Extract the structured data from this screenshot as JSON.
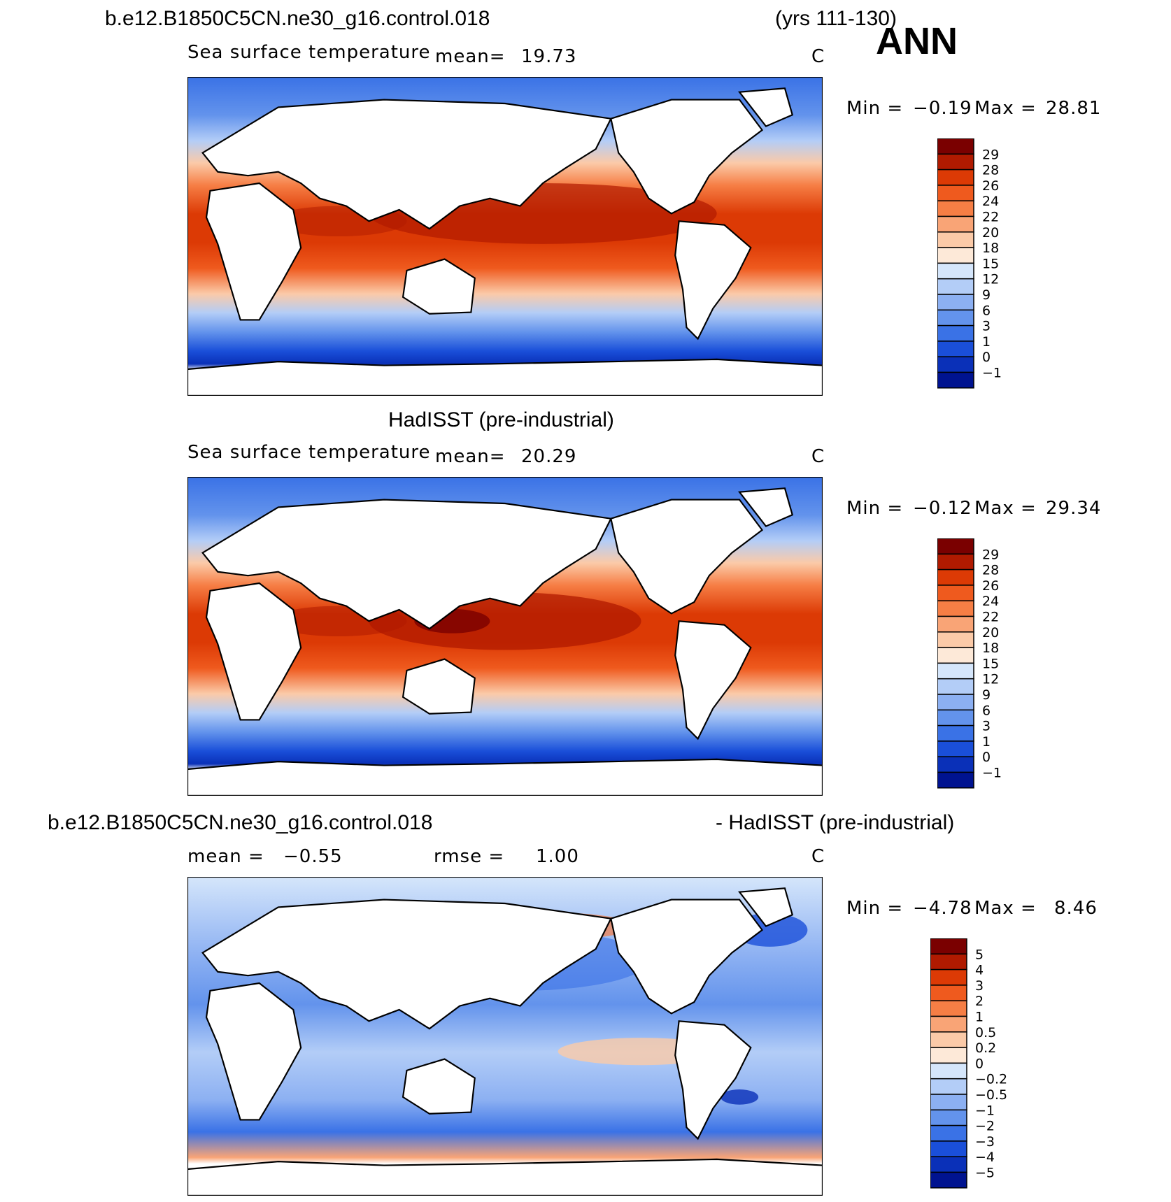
{
  "header": {
    "case_name": "b.e12.B1850C5CN.ne30_g16.control.018",
    "years": "(yrs 111-130)",
    "season": "ANN"
  },
  "panels": [
    {
      "title": "",
      "variable": "Sea surface temperature",
      "mean_label": "mean=",
      "mean_value": "19.73",
      "units": "C",
      "min_label": "Min =",
      "min_value": "−0.19",
      "max_label": "Max =",
      "max_value": "28.81",
      "colorbar_labels": [
        "29",
        "28",
        "26",
        "24",
        "22",
        "20",
        "18",
        "15",
        "12",
        "9",
        "6",
        "3",
        "1",
        "0",
        "−1"
      ],
      "colorbar_colors": [
        "#7a0000",
        "#b01a00",
        "#dc3a05",
        "#ef5a1e",
        "#f67e45",
        "#f9a476",
        "#fbcaa8",
        "#fde9d8",
        "#d5e6fb",
        "#b3cdf7",
        "#8cb0f2",
        "#6393ec",
        "#3a72e6",
        "#1a4fd9",
        "#0a30b8",
        "#001390"
      ]
    },
    {
      "title": "HadISST (pre-industrial)",
      "variable": "Sea surface temperature",
      "mean_label": "mean=",
      "mean_value": "20.29",
      "units": "C",
      "min_label": "Min =",
      "min_value": "−0.12",
      "max_label": "Max =",
      "max_value": "29.34",
      "colorbar_labels": [
        "29",
        "28",
        "26",
        "24",
        "22",
        "20",
        "18",
        "15",
        "12",
        "9",
        "6",
        "3",
        "1",
        "0",
        "−1"
      ],
      "colorbar_colors": [
        "#7a0000",
        "#b01a00",
        "#dc3a05",
        "#ef5a1e",
        "#f67e45",
        "#f9a476",
        "#fbcaa8",
        "#fde9d8",
        "#d5e6fb",
        "#b3cdf7",
        "#8cb0f2",
        "#6393ec",
        "#3a72e6",
        "#1a4fd9",
        "#0a30b8",
        "#001390"
      ]
    },
    {
      "title_left": "b.e12.B1850C5CN.ne30_g16.control.018",
      "title_right": "- HadISST (pre-industrial)",
      "mean_label": "mean =",
      "mean_value": "−0.55",
      "rmse_label": "rmse =",
      "rmse_value": "1.00",
      "units": "C",
      "min_label": "Min =",
      "min_value": "−4.78",
      "max_label": "Max =",
      "max_value": "8.46",
      "colorbar_labels": [
        "5",
        "4",
        "3",
        "2",
        "1",
        "0.5",
        "0.2",
        "0",
        "−0.2",
        "−0.5",
        "−1",
        "−2",
        "−3",
        "−4",
        "−5"
      ],
      "colorbar_colors": [
        "#7a0000",
        "#b01a00",
        "#dc3a05",
        "#ef5a1e",
        "#f67e45",
        "#f9a476",
        "#fbcaa8",
        "#fde9d8",
        "#d5e6fb",
        "#b3cdf7",
        "#8cb0f2",
        "#6393ec",
        "#3a72e6",
        "#1a4fd9",
        "#0a30b8",
        "#001390"
      ]
    }
  ]
}
